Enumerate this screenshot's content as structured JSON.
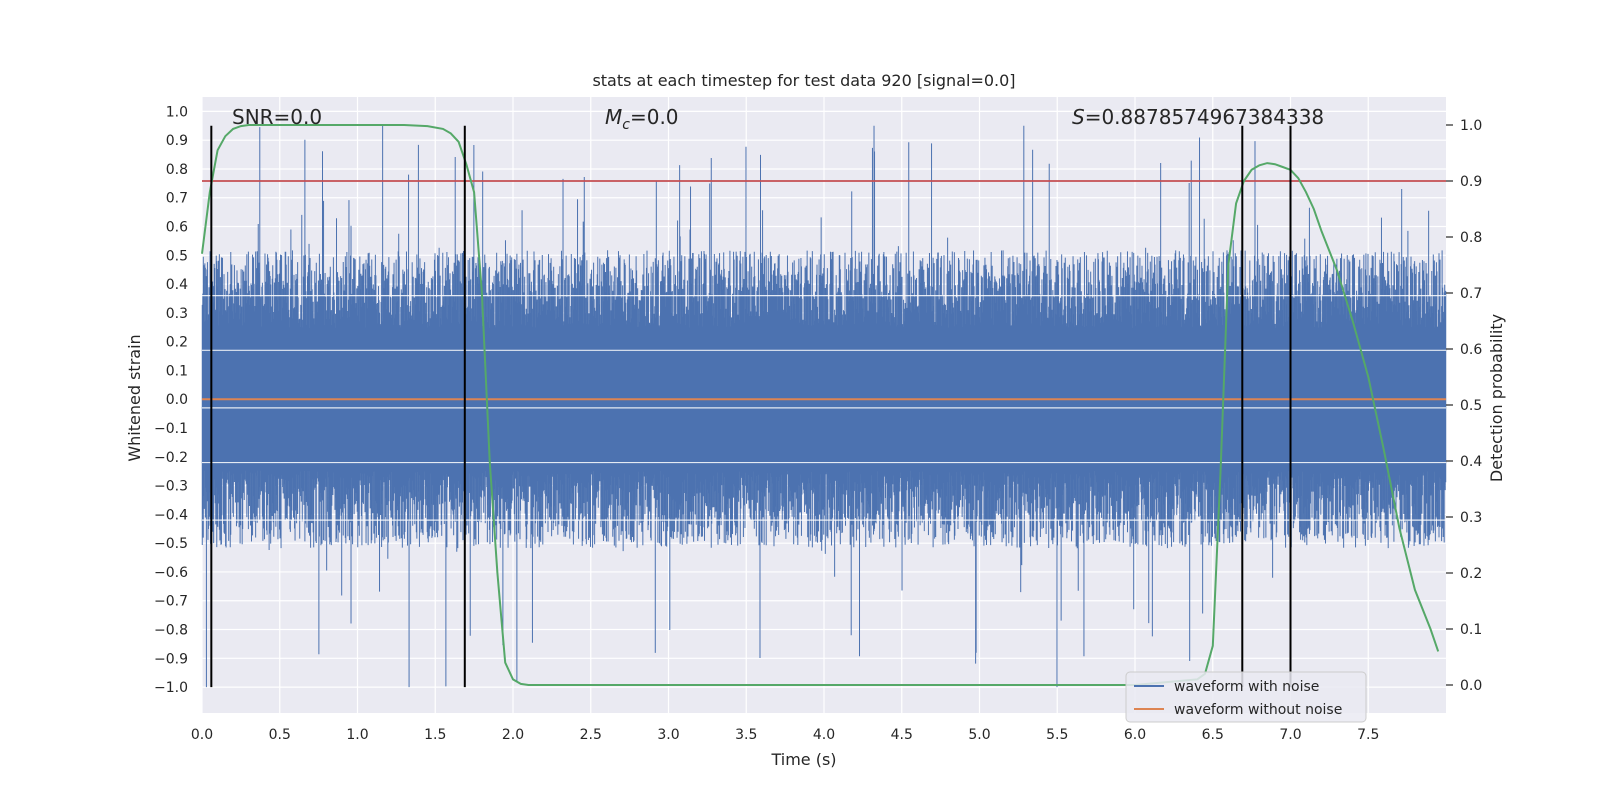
{
  "chart_data": {
    "type": "line",
    "title": "stats at each timestep for test data 920 [signal=0.0]",
    "xlabel": "Time (s)",
    "ylabel_left": "Whitened strain",
    "ylabel_right": "Detection probability",
    "xlim": [
      0.0,
      8.0
    ],
    "ylim_left": [
      -1.09,
      1.05
    ],
    "ylim_right": [
      -0.05,
      1.05
    ],
    "x_ticks": [
      "0.0",
      "0.5",
      "1.0",
      "1.5",
      "2.0",
      "2.5",
      "3.0",
      "3.5",
      "4.0",
      "4.5",
      "5.0",
      "5.5",
      "6.0",
      "6.5",
      "7.0",
      "7.5"
    ],
    "x_tick_values": [
      0.0,
      0.5,
      1.0,
      1.5,
      2.0,
      2.5,
      3.0,
      3.5,
      4.0,
      4.5,
      5.0,
      5.5,
      6.0,
      6.5,
      7.0,
      7.5
    ],
    "y_left_ticks": [
      "1.0",
      "0.9",
      "0.8",
      "0.7",
      "0.6",
      "0.5",
      "0.4",
      "0.3",
      "0.2",
      "0.1",
      "0.0",
      "−0.1",
      "−0.2",
      "−0.3",
      "−0.4",
      "−0.5",
      "−0.6",
      "−0.7",
      "−0.8",
      "−0.9",
      "−1.0"
    ],
    "y_left_tick_values": [
      1.0,
      0.9,
      0.8,
      0.7,
      0.6,
      0.5,
      0.4,
      0.3,
      0.2,
      0.1,
      0.0,
      -0.1,
      -0.2,
      -0.3,
      -0.4,
      -0.5,
      -0.6,
      -0.7,
      -0.8,
      -0.9,
      -1.0
    ],
    "y_right_ticks": [
      "1.0",
      "0.9",
      "0.8",
      "0.7",
      "0.6",
      "0.5",
      "0.4",
      "0.3",
      "0.2",
      "0.1",
      "0.0"
    ],
    "y_right_tick_values": [
      1.0,
      0.9,
      0.8,
      0.7,
      0.6,
      0.5,
      0.4,
      0.3,
      0.2,
      0.1,
      0.0
    ],
    "annotations": {
      "snr": "SNR=0.0",
      "mc_symbol": "M",
      "mc_sub": "c",
      "mc_value": "=0.0",
      "s_symbol": "S",
      "s_value": "=0.8878574967384338"
    },
    "threshold": 0.9,
    "vertical_lines_s": [
      0.06,
      1.69,
      6.69,
      7.0
    ],
    "vertical_lines_range": [
      -1.0,
      0.95
    ],
    "noise_envelope": {
      "typical_amplitude": 0.45,
      "peak_max": 0.95,
      "peak_min": -1.0
    },
    "series": [
      {
        "name": "waveform with noise",
        "color": "#4c72b0",
        "axis": "left",
        "kind": "noise"
      },
      {
        "name": "waveform without noise",
        "color": "#dd8452",
        "axis": "left",
        "kind": "constant",
        "value": 0.0
      },
      {
        "name": "detection probability",
        "color": "#55a868",
        "axis": "right",
        "kind": "line",
        "x": [
          0.0,
          0.05,
          0.1,
          0.15,
          0.2,
          0.25,
          0.3,
          0.4,
          0.5,
          0.7,
          1.0,
          1.3,
          1.45,
          1.55,
          1.6,
          1.65,
          1.7,
          1.75,
          1.8,
          1.85,
          1.9,
          1.95,
          2.0,
          2.05,
          2.1,
          2.2,
          3.0,
          4.0,
          5.0,
          6.0,
          6.4,
          6.45,
          6.5,
          6.55,
          6.6,
          6.65,
          6.7,
          6.75,
          6.8,
          6.85,
          6.9,
          6.95,
          7.0,
          7.05,
          7.1,
          7.15,
          7.2,
          7.3,
          7.4,
          7.5,
          7.6,
          7.7,
          7.8,
          7.9,
          7.95
        ],
        "y": [
          0.77,
          0.88,
          0.955,
          0.98,
          0.993,
          0.998,
          1.0,
          1.0,
          1.0,
          1.0,
          1.0,
          1.0,
          0.998,
          0.993,
          0.985,
          0.97,
          0.93,
          0.88,
          0.7,
          0.4,
          0.2,
          0.04,
          0.01,
          0.002,
          0.0,
          0.0,
          0.0,
          0.0,
          0.0,
          0.0,
          0.01,
          0.02,
          0.07,
          0.38,
          0.75,
          0.86,
          0.9,
          0.92,
          0.928,
          0.932,
          0.93,
          0.925,
          0.92,
          0.905,
          0.88,
          0.85,
          0.81,
          0.74,
          0.65,
          0.55,
          0.42,
          0.28,
          0.17,
          0.1,
          0.06
        ]
      }
    ],
    "legend": {
      "location": "lower-right",
      "entries": [
        "waveform with noise",
        "waveform without noise"
      ]
    },
    "grid": true,
    "colors": {
      "background": "#eaeaf2",
      "grid": "#ffffff",
      "noise": "#4c72b0",
      "no_noise": "#dd8452",
      "probability": "#55a868",
      "threshold": "#c44e52",
      "markers": "#000000"
    }
  }
}
